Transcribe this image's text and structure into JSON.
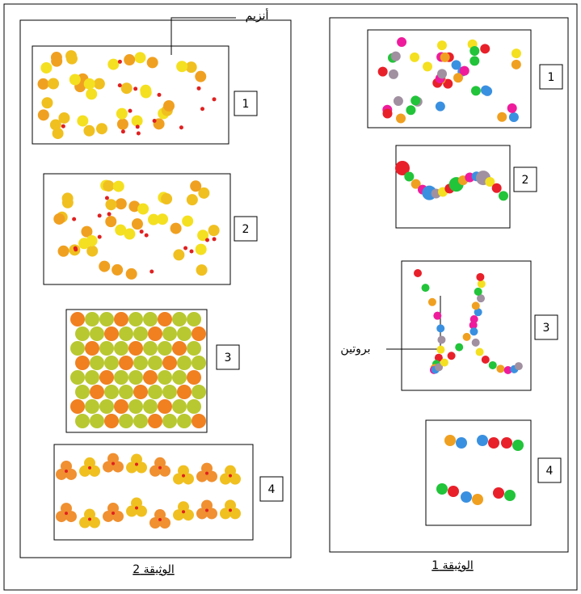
{
  "documents": [
    {
      "title": "الوثيقة 1",
      "panels": [
        "1",
        "2",
        "3",
        "4"
      ]
    },
    {
      "title": "الوثيقة 2",
      "panels": [
        "1",
        "2",
        "3",
        "4"
      ]
    }
  ],
  "annotations": {
    "enzyme": "أنزيم",
    "protein": "بروتين"
  }
}
